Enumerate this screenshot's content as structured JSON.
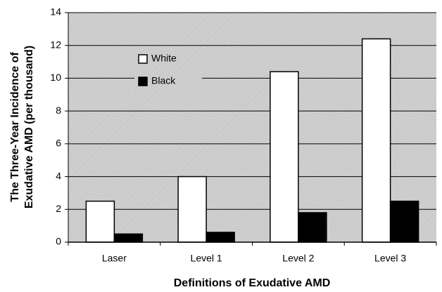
{
  "chart_data": {
    "type": "bar",
    "y_label": [
      "The Three-Year Incidence of",
      "Exudative AMD (per thousand)"
    ],
    "x_label": "Definitions of Exudative AMD",
    "categories": [
      "Laser",
      "Level 1",
      "Level 2",
      "Level 3"
    ],
    "series": [
      {
        "name": "White",
        "color": "#ffffff",
        "values": [
          2.5,
          4.0,
          10.4,
          12.4
        ]
      },
      {
        "name": "Black",
        "color": "#000000",
        "values": [
          0.5,
          0.6,
          1.8,
          2.5
        ]
      }
    ],
    "ylim": [
      0,
      14
    ],
    "yticks": [
      0,
      2,
      4,
      6,
      8,
      10,
      12,
      14
    ],
    "grid": true,
    "legend": "upper left"
  }
}
